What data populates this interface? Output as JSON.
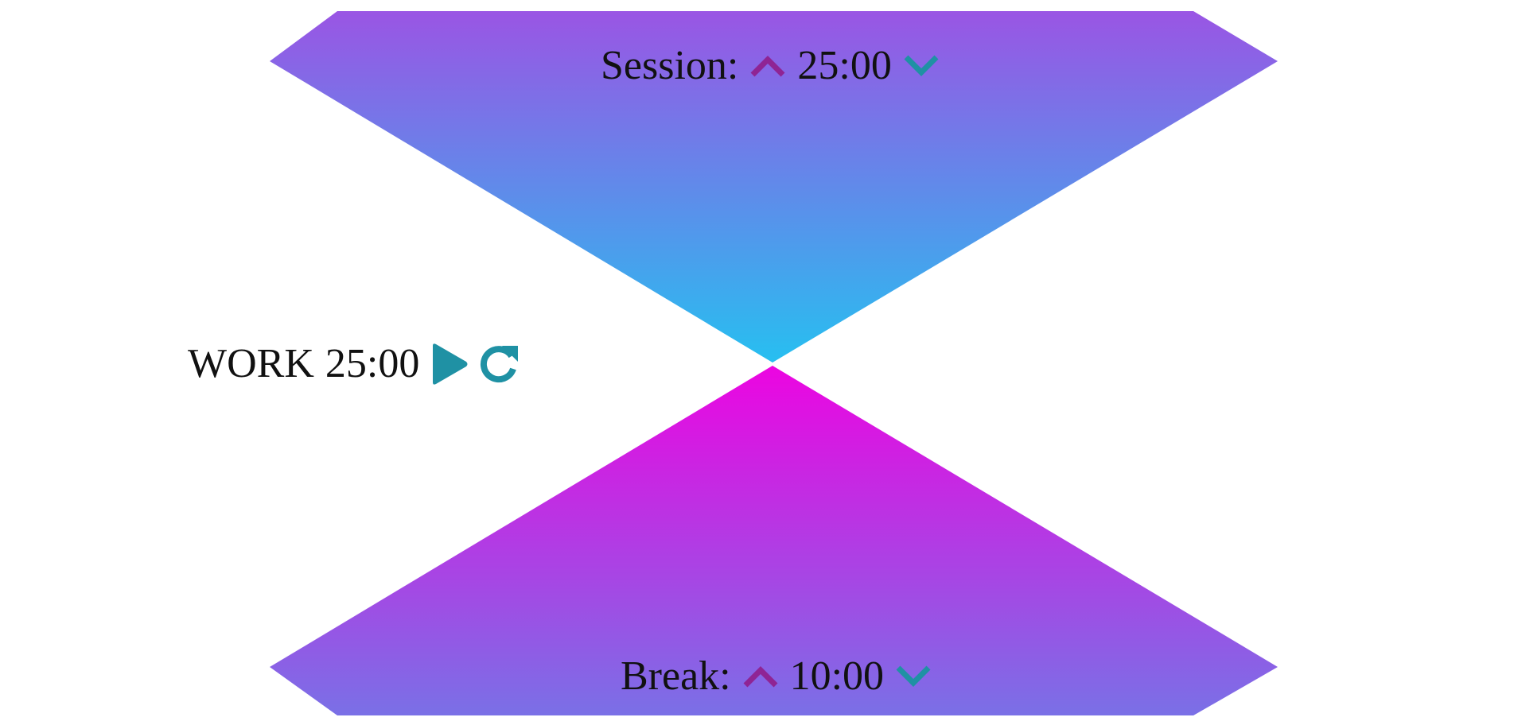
{
  "colors": {
    "top_grad_start": "#9a55e4",
    "top_grad_end": "#27bff0",
    "bottom_grad_start": "#ec05e1",
    "bottom_grad_end": "#7a70e6",
    "up_arrow": "#8f2494",
    "down_arrow": "#1f91a4",
    "control": "#1f91a4"
  },
  "session": {
    "label": "Session:",
    "value": "25:00",
    "increment_icon": "chevron-up-icon",
    "decrement_icon": "chevron-down-icon"
  },
  "break": {
    "label": "Break:",
    "value": "10:00",
    "increment_icon": "chevron-up-icon",
    "decrement_icon": "chevron-down-icon"
  },
  "timer": {
    "mode": "WORK",
    "value": "25:00",
    "play_icon": "play-icon",
    "reset_icon": "refresh-icon"
  }
}
